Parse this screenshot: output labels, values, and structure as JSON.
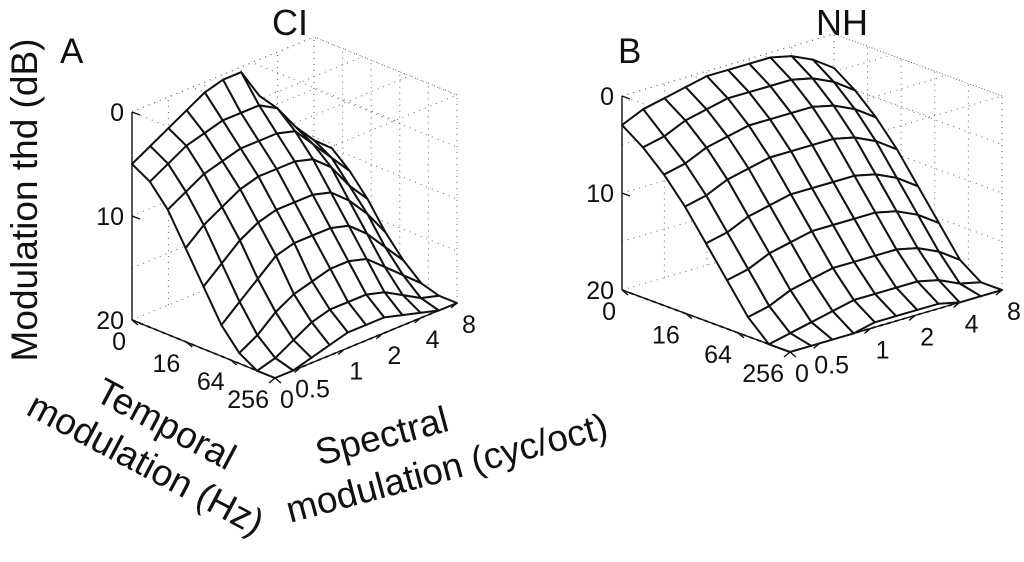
{
  "figure": {
    "ylabel": "Modulation thd (dB)",
    "temporal_label_line1": "Temporal",
    "temporal_label_line2": "modulation (Hz)",
    "spectral_label_line1": "Spectral",
    "spectral_label_line2": "modulation (cyc/oct)"
  },
  "chart_data": [
    {
      "type": "surface",
      "panel": "A",
      "title": "CI",
      "zlabel": "Modulation thd (dB)",
      "xlabel": "Temporal modulation (Hz)",
      "ylabel": "Spectral modulation (cyc/oct)",
      "zlim": [
        0,
        20
      ],
      "z_ticks": [
        "0",
        "10",
        "20"
      ],
      "temporal_ticks": [
        "0",
        "16",
        "64",
        "256"
      ],
      "spectral_ticks": [
        "0",
        "0.5",
        "1",
        "2",
        "4",
        "8"
      ],
      "temporal_axis": [
        0,
        2,
        4,
        8,
        16,
        32,
        64,
        128,
        256
      ],
      "spectral_axis": [
        0,
        0.25,
        0.5,
        0.71,
        1,
        1.41,
        2,
        2.83,
        4,
        5.66,
        8
      ],
      "z_values": [
        [
          10,
          8,
          6,
          3.5,
          0.5,
          0.5,
          1,
          2,
          3,
          4,
          5
        ],
        [
          10,
          8.5,
          6.5,
          4,
          3,
          3,
          3,
          3.5,
          4,
          5,
          6
        ],
        [
          11.5,
          9.5,
          7.5,
          5.5,
          5,
          5,
          5,
          5.5,
          6,
          7,
          8
        ],
        [
          13.5,
          11.5,
          9,
          7.5,
          7,
          7,
          7,
          7.5,
          8.5,
          9.5,
          11
        ],
        [
          16,
          13.5,
          11.5,
          10,
          9.5,
          9.5,
          9.5,
          10,
          11,
          12.5,
          14
        ],
        [
          18,
          16,
          14,
          12.5,
          12,
          12,
          12,
          12.5,
          14,
          15.5,
          17
        ],
        [
          19.5,
          18,
          16.5,
          15,
          14.5,
          14.5,
          15,
          15.5,
          16.5,
          18,
          19
        ],
        [
          20,
          19.5,
          18.5,
          17.5,
          17,
          17,
          17,
          17.5,
          18.5,
          19.5,
          20
        ],
        [
          20,
          20,
          19.5,
          19,
          18.5,
          18.5,
          18.5,
          19,
          19.5,
          20,
          20
        ]
      ],
      "grid": true
    },
    {
      "type": "surface",
      "panel": "B",
      "title": "NH",
      "zlabel": "Modulation thd (dB)",
      "xlabel": "Temporal modulation (Hz)",
      "ylabel": "Spectral modulation (cyc/oct)",
      "zlim": [
        0,
        20
      ],
      "z_ticks": [
        "0",
        "10",
        "20"
      ],
      "temporal_ticks": [
        "0",
        "16",
        "64",
        "256"
      ],
      "spectral_ticks": [
        "0",
        "0.5",
        "1",
        "2",
        "4",
        "8"
      ],
      "temporal_axis": [
        0,
        2,
        4,
        8,
        16,
        32,
        64,
        128,
        256
      ],
      "spectral_axis": [
        0,
        0.25,
        0.5,
        0.71,
        1,
        1.41,
        2,
        2.83,
        4,
        5.66,
        8
      ],
      "z_values": [
        [
          3.5,
          2,
          1,
          0.5,
          0.5,
          0.5,
          0.5,
          1,
          1.5,
          2,
          3
        ],
        [
          5,
          3.5,
          2.5,
          2,
          2,
          2,
          2,
          2.5,
          3,
          4,
          4.5
        ],
        [
          7,
          5.5,
          4.5,
          4,
          4,
          4,
          4,
          4.5,
          5,
          6,
          6.5
        ],
        [
          9.5,
          8,
          7,
          6.5,
          6.5,
          6.5,
          6.5,
          7,
          7.5,
          8.5,
          9
        ],
        [
          12.5,
          11,
          10,
          9.5,
          9.5,
          9.5,
          9.5,
          10,
          10.5,
          11.5,
          12
        ],
        [
          15.5,
          14,
          13,
          12.5,
          12.5,
          12.5,
          12.5,
          13,
          13.5,
          14.5,
          15
        ],
        [
          18.5,
          17,
          16,
          15.5,
          15.5,
          15.5,
          15.5,
          16,
          16.5,
          17.5,
          18
        ],
        [
          20,
          19.5,
          18.5,
          18,
          18,
          18,
          18,
          18.5,
          19,
          19.5,
          20
        ],
        [
          20,
          20,
          20,
          19.5,
          19.5,
          19.5,
          19.5,
          20,
          20,
          20,
          20
        ]
      ],
      "grid": true
    }
  ]
}
